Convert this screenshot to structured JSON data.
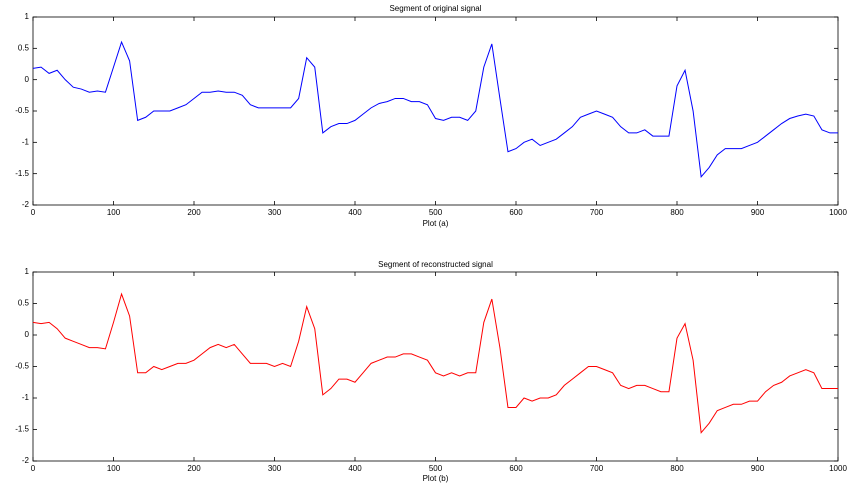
{
  "chart_data": [
    {
      "type": "line",
      "title": "Segment of original signal",
      "x_label": "Plot (a)",
      "x": [
        0,
        10,
        20,
        30,
        40,
        50,
        60,
        70,
        80,
        90,
        100,
        110,
        120,
        130,
        140,
        150,
        160,
        170,
        180,
        190,
        200,
        210,
        220,
        230,
        240,
        250,
        260,
        270,
        280,
        290,
        300,
        310,
        320,
        330,
        340,
        350,
        360,
        370,
        380,
        390,
        400,
        410,
        420,
        430,
        440,
        450,
        460,
        470,
        480,
        490,
        500,
        510,
        520,
        530,
        540,
        550,
        560,
        570,
        580,
        590,
        600,
        610,
        620,
        630,
        640,
        650,
        660,
        670,
        680,
        690,
        700,
        710,
        720,
        730,
        740,
        750,
        760,
        770,
        780,
        790,
        800,
        810,
        820,
        830,
        840,
        850,
        860,
        870,
        880,
        890,
        900,
        910,
        920,
        930,
        940,
        950,
        960,
        970,
        980,
        990,
        1000
      ],
      "values": [
        0.18,
        0.2,
        0.1,
        0.15,
        0.0,
        -0.12,
        -0.15,
        -0.2,
        -0.18,
        -0.2,
        0.2,
        0.6,
        0.3,
        -0.65,
        -0.6,
        -0.5,
        -0.5,
        -0.5,
        -0.45,
        -0.4,
        -0.3,
        -0.2,
        -0.2,
        -0.18,
        -0.2,
        -0.2,
        -0.25,
        -0.4,
        -0.45,
        -0.45,
        -0.45,
        -0.45,
        -0.45,
        -0.3,
        0.35,
        0.2,
        -0.85,
        -0.75,
        -0.7,
        -0.7,
        -0.65,
        -0.55,
        -0.45,
        -0.38,
        -0.35,
        -0.3,
        -0.3,
        -0.35,
        -0.35,
        -0.4,
        -0.62,
        -0.65,
        -0.6,
        -0.6,
        -0.65,
        -0.5,
        0.2,
        0.57,
        -0.3,
        -1.15,
        -1.1,
        -1.0,
        -0.95,
        -1.05,
        -1.0,
        -0.95,
        -0.85,
        -0.75,
        -0.6,
        -0.55,
        -0.5,
        -0.55,
        -0.6,
        -0.75,
        -0.85,
        -0.85,
        -0.8,
        -0.9,
        -0.9,
        -0.9,
        -0.1,
        0.15,
        -0.5,
        -1.55,
        -1.4,
        -1.2,
        -1.1,
        -1.1,
        -1.1,
        -1.05,
        -1.0,
        -0.9,
        -0.8,
        -0.7,
        -0.62,
        -0.58,
        -0.55,
        -0.58,
        -0.8,
        -0.85,
        -0.85
      ],
      "color": "#0000ff",
      "xlim": [
        0,
        1000
      ],
      "ylim": [
        -2,
        1
      ],
      "xticks": [
        0,
        100,
        200,
        300,
        400,
        500,
        600,
        700,
        800,
        900,
        1000
      ],
      "yticks": [
        -2,
        -1.5,
        -1,
        -0.5,
        0,
        0.5,
        1
      ]
    },
    {
      "type": "line",
      "title": "Segment of reconstructed signal",
      "x_label": "Plot (b)",
      "x": [
        0,
        10,
        20,
        30,
        40,
        50,
        60,
        70,
        80,
        90,
        100,
        110,
        120,
        130,
        140,
        150,
        160,
        170,
        180,
        190,
        200,
        210,
        220,
        230,
        240,
        250,
        260,
        270,
        280,
        290,
        300,
        310,
        320,
        330,
        340,
        350,
        360,
        370,
        380,
        390,
        400,
        410,
        420,
        430,
        440,
        450,
        460,
        470,
        480,
        490,
        500,
        510,
        520,
        530,
        540,
        550,
        560,
        570,
        580,
        590,
        600,
        610,
        620,
        630,
        640,
        650,
        660,
        670,
        680,
        690,
        700,
        710,
        720,
        730,
        740,
        750,
        760,
        770,
        780,
        790,
        800,
        810,
        820,
        830,
        840,
        850,
        860,
        870,
        880,
        890,
        900,
        910,
        920,
        930,
        940,
        950,
        960,
        970,
        980,
        990,
        1000
      ],
      "values": [
        0.2,
        0.18,
        0.2,
        0.1,
        -0.05,
        -0.1,
        -0.15,
        -0.2,
        -0.2,
        -0.22,
        0.2,
        0.65,
        0.3,
        -0.6,
        -0.6,
        -0.5,
        -0.55,
        -0.5,
        -0.45,
        -0.45,
        -0.4,
        -0.3,
        -0.2,
        -0.15,
        -0.2,
        -0.15,
        -0.3,
        -0.45,
        -0.45,
        -0.45,
        -0.5,
        -0.45,
        -0.5,
        -0.1,
        0.45,
        0.1,
        -0.95,
        -0.85,
        -0.7,
        -0.7,
        -0.75,
        -0.6,
        -0.45,
        -0.4,
        -0.35,
        -0.35,
        -0.3,
        -0.3,
        -0.35,
        -0.4,
        -0.6,
        -0.65,
        -0.6,
        -0.65,
        -0.6,
        -0.6,
        0.2,
        0.57,
        -0.2,
        -1.15,
        -1.15,
        -1.0,
        -1.05,
        -1.0,
        -1.0,
        -0.95,
        -0.8,
        -0.7,
        -0.6,
        -0.5,
        -0.5,
        -0.55,
        -0.6,
        -0.8,
        -0.85,
        -0.8,
        -0.8,
        -0.85,
        -0.9,
        -0.9,
        -0.05,
        0.18,
        -0.4,
        -1.55,
        -1.4,
        -1.2,
        -1.15,
        -1.1,
        -1.1,
        -1.05,
        -1.05,
        -0.9,
        -0.8,
        -0.75,
        -0.65,
        -0.6,
        -0.55,
        -0.6,
        -0.85,
        -0.85,
        -0.85
      ],
      "color": "#ff0000",
      "xlim": [
        0,
        1000
      ],
      "ylim": [
        -2,
        1
      ],
      "xticks": [
        0,
        100,
        200,
        300,
        400,
        500,
        600,
        700,
        800,
        900,
        1000
      ],
      "yticks": [
        -2,
        -1.5,
        -1,
        -0.5,
        0,
        0.5,
        1
      ]
    }
  ]
}
